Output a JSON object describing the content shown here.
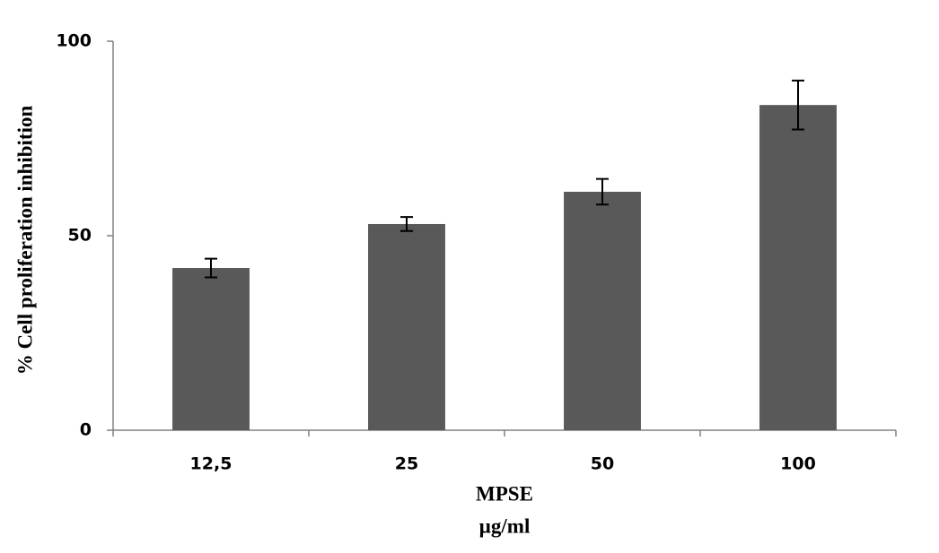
{
  "chart_data": {
    "type": "bar",
    "categories": [
      "12,5",
      "25",
      "50",
      "100"
    ],
    "values": [
      41.7,
      53.0,
      61.3,
      83.6
    ],
    "errors": [
      2.4,
      1.8,
      3.3,
      6.3
    ],
    "color": "#595959",
    "ylabel": "% Cell proliferation inhibition",
    "xlabel": [
      "MPSE",
      "µg/ml"
    ],
    "ylim": [
      0,
      100
    ],
    "yticks": [
      0,
      50,
      100
    ],
    "grid": false
  }
}
